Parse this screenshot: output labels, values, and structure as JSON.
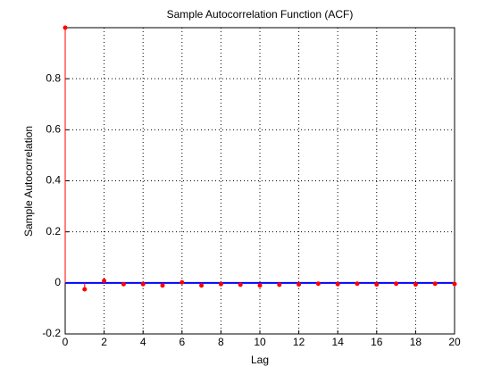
{
  "chart_data": {
    "type": "stem",
    "title": "Sample Autocorrelation Function (ACF)",
    "x_label": "Lag",
    "y_label": "Sample Autocorrelation",
    "x": [
      0,
      1,
      2,
      3,
      4,
      5,
      6,
      7,
      8,
      9,
      10,
      11,
      12,
      13,
      14,
      15,
      16,
      17,
      18,
      19,
      20
    ],
    "values": [
      1,
      -0.025,
      0.008,
      -0.005,
      -0.005,
      -0.01,
      0.002,
      -0.01,
      -0.005,
      -0.007,
      -0.01,
      -0.007,
      -0.006,
      -0.003,
      -0.005,
      -0.003,
      -0.006,
      -0.003,
      -0.006,
      -0.003,
      -0.004
    ],
    "color": "#ff0000",
    "baseline_color": "#0000ff",
    "xlim": [
      0,
      20
    ],
    "xticks": [
      0,
      2,
      4,
      6,
      8,
      10,
      12,
      14,
      16,
      18,
      20
    ],
    "ylim": [
      -0.2,
      1
    ],
    "yticks": [
      -0.2,
      0,
      0.2,
      0.4,
      0.6,
      0.8
    ],
    "grid": true
  }
}
